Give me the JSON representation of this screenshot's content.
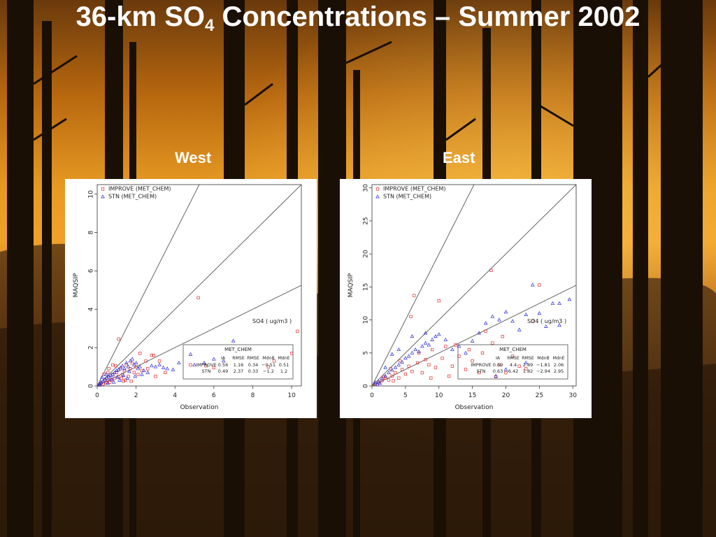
{
  "slide": {
    "title_pre": "36-km SO",
    "title_sub": "4",
    "title_post": " Concentrations – Summer 2002"
  },
  "panels": {
    "west_label": "West",
    "east_label": "East"
  },
  "colors": {
    "improve": "#e03030",
    "stn": "#2a2ad8",
    "lines": "#555555"
  },
  "chart_data": [
    {
      "type": "scatter",
      "title": "West",
      "xlabel": "Observation",
      "ylabel": "MAQSIP",
      "xlim": [
        0,
        10.5
      ],
      "ylim": [
        0,
        10.5
      ],
      "xticks": [
        "0",
        "2",
        "4",
        "6",
        "8",
        "10"
      ],
      "yticks": [
        "0",
        "2",
        "4",
        "6",
        "8",
        "10"
      ],
      "ref_lines": [
        2,
        1,
        0.5
      ],
      "annotation": "SO4  ( ug/m3 )",
      "legend": [
        "IMPROVE (MET_CHEM)",
        "STN (MET_CHEM)"
      ],
      "stats": {
        "title": "MET_CHEM",
        "headers": [
          "IA",
          "RMSE",
          "RMSE",
          "MdnB",
          "MdnE"
        ],
        "rows": [
          {
            "name": "IMPROVE",
            "values": [
              "0.56",
              "1.16",
              "0.34",
              "−0.51",
              "0.51"
            ]
          },
          {
            "name": "STN",
            "values": [
              "0.49",
              "2.37",
              "0.33",
              "−1.2",
              "1.2"
            ]
          }
        ]
      },
      "series": [
        {
          "name": "IMPROVE (MET_CHEM)",
          "marker": "square",
          "points": [
            [
              0.1,
              0.05
            ],
            [
              0.2,
              0.15
            ],
            [
              0.3,
              0.1
            ],
            [
              0.4,
              0.3
            ],
            [
              0.5,
              0.2
            ],
            [
              0.6,
              0.45
            ],
            [
              0.7,
              0.3
            ],
            [
              0.8,
              0.6
            ],
            [
              0.9,
              0.4
            ],
            [
              1.0,
              0.7
            ],
            [
              1.1,
              0.5
            ],
            [
              1.2,
              0.9
            ],
            [
              1.3,
              0.6
            ],
            [
              1.4,
              0.8
            ],
            [
              1.5,
              1.1
            ],
            [
              1.6,
              0.5
            ],
            [
              1.7,
              0.9
            ],
            [
              1.8,
              1.2
            ],
            [
              1.9,
              0.7
            ],
            [
              2.0,
              1.0
            ],
            [
              2.2,
              1.7
            ],
            [
              2.3,
              0.8
            ],
            [
              2.5,
              1.3
            ],
            [
              2.8,
              1.6
            ],
            [
              2.9,
              1.6
            ],
            [
              3.2,
              1.3
            ],
            [
              3.5,
              0.7
            ],
            [
              1.1,
              2.45
            ],
            [
              0.6,
              0.9
            ],
            [
              0.8,
              1.1
            ],
            [
              0.35,
              0.6
            ],
            [
              0.45,
              0.15
            ],
            [
              0.55,
              0.7
            ],
            [
              0.65,
              0.2
            ],
            [
              1.25,
              0.4
            ],
            [
              1.45,
              0.3
            ],
            [
              2.1,
              0.6
            ],
            [
              2.6,
              0.9
            ],
            [
              5.2,
              4.6
            ],
            [
              10.3,
              2.85
            ],
            [
              10.0,
              1.7
            ],
            [
              9.1,
              1.3
            ],
            [
              8.8,
              1.0
            ],
            [
              6.0,
              0.95
            ],
            [
              5.6,
              1.05
            ],
            [
              4.8,
              1.1
            ],
            [
              3.0,
              0.5
            ],
            [
              1.75,
              0.25
            ],
            [
              0.95,
              1.05
            ],
            [
              1.35,
              0.25
            ]
          ]
        },
        {
          "name": "STN (MET_CHEM)",
          "marker": "triangle",
          "points": [
            [
              0.1,
              0.1
            ],
            [
              0.2,
              0.2
            ],
            [
              0.3,
              0.25
            ],
            [
              0.4,
              0.35
            ],
            [
              0.5,
              0.4
            ],
            [
              0.6,
              0.5
            ],
            [
              0.7,
              0.55
            ],
            [
              0.8,
              0.6
            ],
            [
              0.9,
              0.7
            ],
            [
              1.0,
              0.8
            ],
            [
              1.1,
              0.85
            ],
            [
              1.2,
              0.95
            ],
            [
              1.3,
              1.05
            ],
            [
              1.4,
              0.9
            ],
            [
              1.5,
              1.2
            ],
            [
              1.6,
              1.0
            ],
            [
              1.7,
              1.3
            ],
            [
              1.8,
              1.4
            ],
            [
              1.9,
              1.1
            ],
            [
              2.0,
              1.2
            ],
            [
              2.1,
              0.9
            ],
            [
              2.2,
              1.0
            ],
            [
              2.4,
              0.8
            ],
            [
              2.6,
              0.7
            ],
            [
              2.8,
              1.05
            ],
            [
              3.0,
              1.0
            ],
            [
              3.2,
              1.1
            ],
            [
              3.4,
              0.95
            ],
            [
              3.6,
              0.9
            ],
            [
              3.9,
              0.85
            ],
            [
              4.2,
              1.2
            ],
            [
              4.8,
              1.65
            ],
            [
              5.0,
              1.1
            ],
            [
              5.5,
              1.2
            ],
            [
              6.0,
              1.4
            ],
            [
              6.5,
              1.3
            ],
            [
              7.0,
              2.35
            ],
            [
              0.25,
              0.45
            ],
            [
              0.45,
              0.6
            ],
            [
              0.75,
              0.35
            ],
            [
              1.05,
              0.45
            ],
            [
              1.35,
              0.55
            ],
            [
              1.65,
              0.75
            ],
            [
              1.95,
              0.5
            ],
            [
              2.3,
              0.6
            ],
            [
              0.15,
              0.05
            ],
            [
              0.55,
              0.15
            ],
            [
              0.85,
              0.2
            ],
            [
              1.15,
              0.3
            ],
            [
              1.55,
              0.4
            ]
          ]
        }
      ]
    },
    {
      "type": "scatter",
      "title": "East",
      "xlabel": "Observation",
      "ylabel": "MAQSIP",
      "xlim": [
        0,
        30.5
      ],
      "ylim": [
        0,
        30.5
      ],
      "xticks": [
        "0",
        "5",
        "10",
        "15",
        "20",
        "25",
        "30"
      ],
      "yticks": [
        "0",
        "5",
        "10",
        "15",
        "20",
        "25",
        "30"
      ],
      "ref_lines": [
        2,
        1,
        0.5
      ],
      "annotation": "SO4  ( ug/m3 )",
      "legend": [
        "IMPROVE (MET_CHEM)",
        "STN (MET_CHEM)"
      ],
      "stats": {
        "title": "MET_CHEM",
        "headers": [
          "IA",
          "RMSE",
          "RMSE",
          "MdnB",
          "MdnE"
        ],
        "rows": [
          {
            "name": "IMPROVE",
            "values": [
              "0.69",
              "4.4",
              "2.89",
              "−1.81",
              "2.06"
            ]
          },
          {
            "name": "STN",
            "values": [
              "0.63",
              "6.42",
              "1.82",
              "−2.94",
              "2.95"
            ]
          }
        ]
      },
      "series": [
        {
          "name": "IMPROVE (MET_CHEM)",
          "marker": "square",
          "points": [
            [
              0.5,
              0.3
            ],
            [
              1,
              0.5
            ],
            [
              1.5,
              0.8
            ],
            [
              2,
              1.2
            ],
            [
              2.5,
              0.9
            ],
            [
              3,
              1.5
            ],
            [
              3.5,
              2.0
            ],
            [
              4,
              1.2
            ],
            [
              4.5,
              2.5
            ],
            [
              5,
              1.8
            ],
            [
              5.5,
              3.0
            ],
            [
              6,
              2.2
            ],
            [
              6.3,
              13.7
            ],
            [
              6.8,
              3.5
            ],
            [
              7.5,
              2.0
            ],
            [
              8,
              4.0
            ],
            [
              8.5,
              3.2
            ],
            [
              9,
              5.5
            ],
            [
              9.5,
              2.8
            ],
            [
              10,
              12.9
            ],
            [
              10.5,
              4.2
            ],
            [
              11,
              6.0
            ],
            [
              12,
              3.0
            ],
            [
              13,
              4.5
            ],
            [
              14,
              2.5
            ],
            [
              15,
              3.8
            ],
            [
              16,
              2.0
            ],
            [
              17,
              8.3
            ],
            [
              17.8,
              17.5
            ],
            [
              18,
              6.5
            ],
            [
              18.5,
              1.4
            ],
            [
              19,
              3.2
            ],
            [
              20,
              2.0
            ],
            [
              21,
              4.5
            ],
            [
              22,
              3.0
            ],
            [
              23,
              2.6
            ],
            [
              25,
              15.3
            ],
            [
              5.8,
              10.5
            ],
            [
              7,
              5.0
            ],
            [
              4.2,
              3.8
            ],
            [
              3.2,
              0.8
            ],
            [
              2.8,
              2.6
            ],
            [
              1.8,
              1.4
            ],
            [
              12.5,
              6.2
            ],
            [
              14.5,
              5.5
            ],
            [
              19.5,
              7.5
            ],
            [
              24,
              9.8
            ],
            [
              16.5,
              5.0
            ],
            [
              11.5,
              1.5
            ],
            [
              8.8,
              1.2
            ]
          ]
        },
        {
          "name": "STN (MET_CHEM)",
          "marker": "triangle",
          "points": [
            [
              0.5,
              0.5
            ],
            [
              1,
              0.7
            ],
            [
              1.5,
              1.1
            ],
            [
              2,
              1.5
            ],
            [
              2.5,
              2.0
            ],
            [
              3,
              2.4
            ],
            [
              3.5,
              2.8
            ],
            [
              4,
              3.2
            ],
            [
              4.5,
              3.6
            ],
            [
              5,
              4.2
            ],
            [
              5.5,
              4.5
            ],
            [
              6,
              5.0
            ],
            [
              6.5,
              5.5
            ],
            [
              7,
              5.2
            ],
            [
              7.5,
              6.0
            ],
            [
              8,
              6.5
            ],
            [
              8.5,
              6.2
            ],
            [
              9,
              7.0
            ],
            [
              9.5,
              7.5
            ],
            [
              10,
              7.8
            ],
            [
              11,
              7.0
            ],
            [
              12,
              5.5
            ],
            [
              13,
              6.0
            ],
            [
              14,
              5.0
            ],
            [
              15,
              6.8
            ],
            [
              16,
              8.0
            ],
            [
              17,
              9.5
            ],
            [
              18,
              10.5
            ],
            [
              19,
              10.0
            ],
            [
              20,
              11.2
            ],
            [
              21,
              9.8
            ],
            [
              22,
              8.5
            ],
            [
              23,
              10.8
            ],
            [
              24,
              15.3
            ],
            [
              26,
              9.0
            ],
            [
              27,
              12.5
            ],
            [
              28,
              12.5
            ],
            [
              29.5,
              13.1
            ],
            [
              28,
              9.2
            ],
            [
              25,
              11.0
            ],
            [
              18.5,
              1.5
            ],
            [
              20,
              2.5
            ],
            [
              23,
              3.5
            ],
            [
              3,
              4.8
            ],
            [
              4,
              5.5
            ],
            [
              2,
              2.8
            ],
            [
              6,
              7.5
            ],
            [
              8,
              8.0
            ],
            [
              1.2,
              0.4
            ],
            [
              0.8,
              0.2
            ]
          ]
        }
      ]
    }
  ]
}
